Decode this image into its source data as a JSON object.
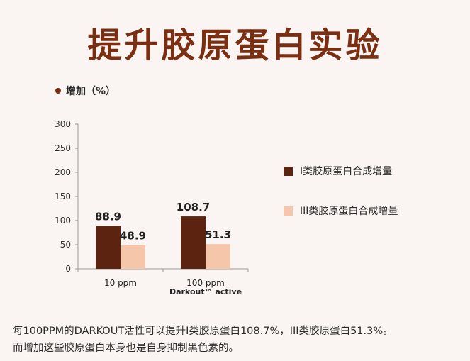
{
  "title": "提升胶原蛋白实验",
  "colors": {
    "title": "#7a2f12",
    "series1": "#5c2410",
    "series2": "#f6c6aa",
    "background": "#faf5f2"
  },
  "chart_data": {
    "type": "bar",
    "ylabel": "增加（%）",
    "ylim": [
      0,
      300
    ],
    "yticks": [
      "0",
      "50",
      "100",
      "150",
      "200",
      "250",
      "300"
    ],
    "ytick_values": [
      0,
      50,
      100,
      150,
      200,
      250,
      300
    ],
    "categories": [
      "10 ppm",
      "100 ppm"
    ],
    "category_sublabels": [
      "",
      "Darkout™ active"
    ],
    "series": [
      {
        "name": "I类胶原蛋白合成增量",
        "values": [
          88.9,
          108.7
        ],
        "labels": [
          "88.9",
          "108.7"
        ]
      },
      {
        "name": "III类胶原蛋白合成增量",
        "values": [
          48.9,
          51.3
        ],
        "labels": [
          "48.9",
          "51.3"
        ]
      }
    ],
    "legend": "right",
    "grid": false
  },
  "caption": {
    "line1": "每100PPM的DARKOUT活性可以提升I类胶原蛋白108.7%，III类胶原蛋白51.3%。",
    "line2": "而增加这些胶原蛋白本身也是自身抑制黑色素的。"
  }
}
